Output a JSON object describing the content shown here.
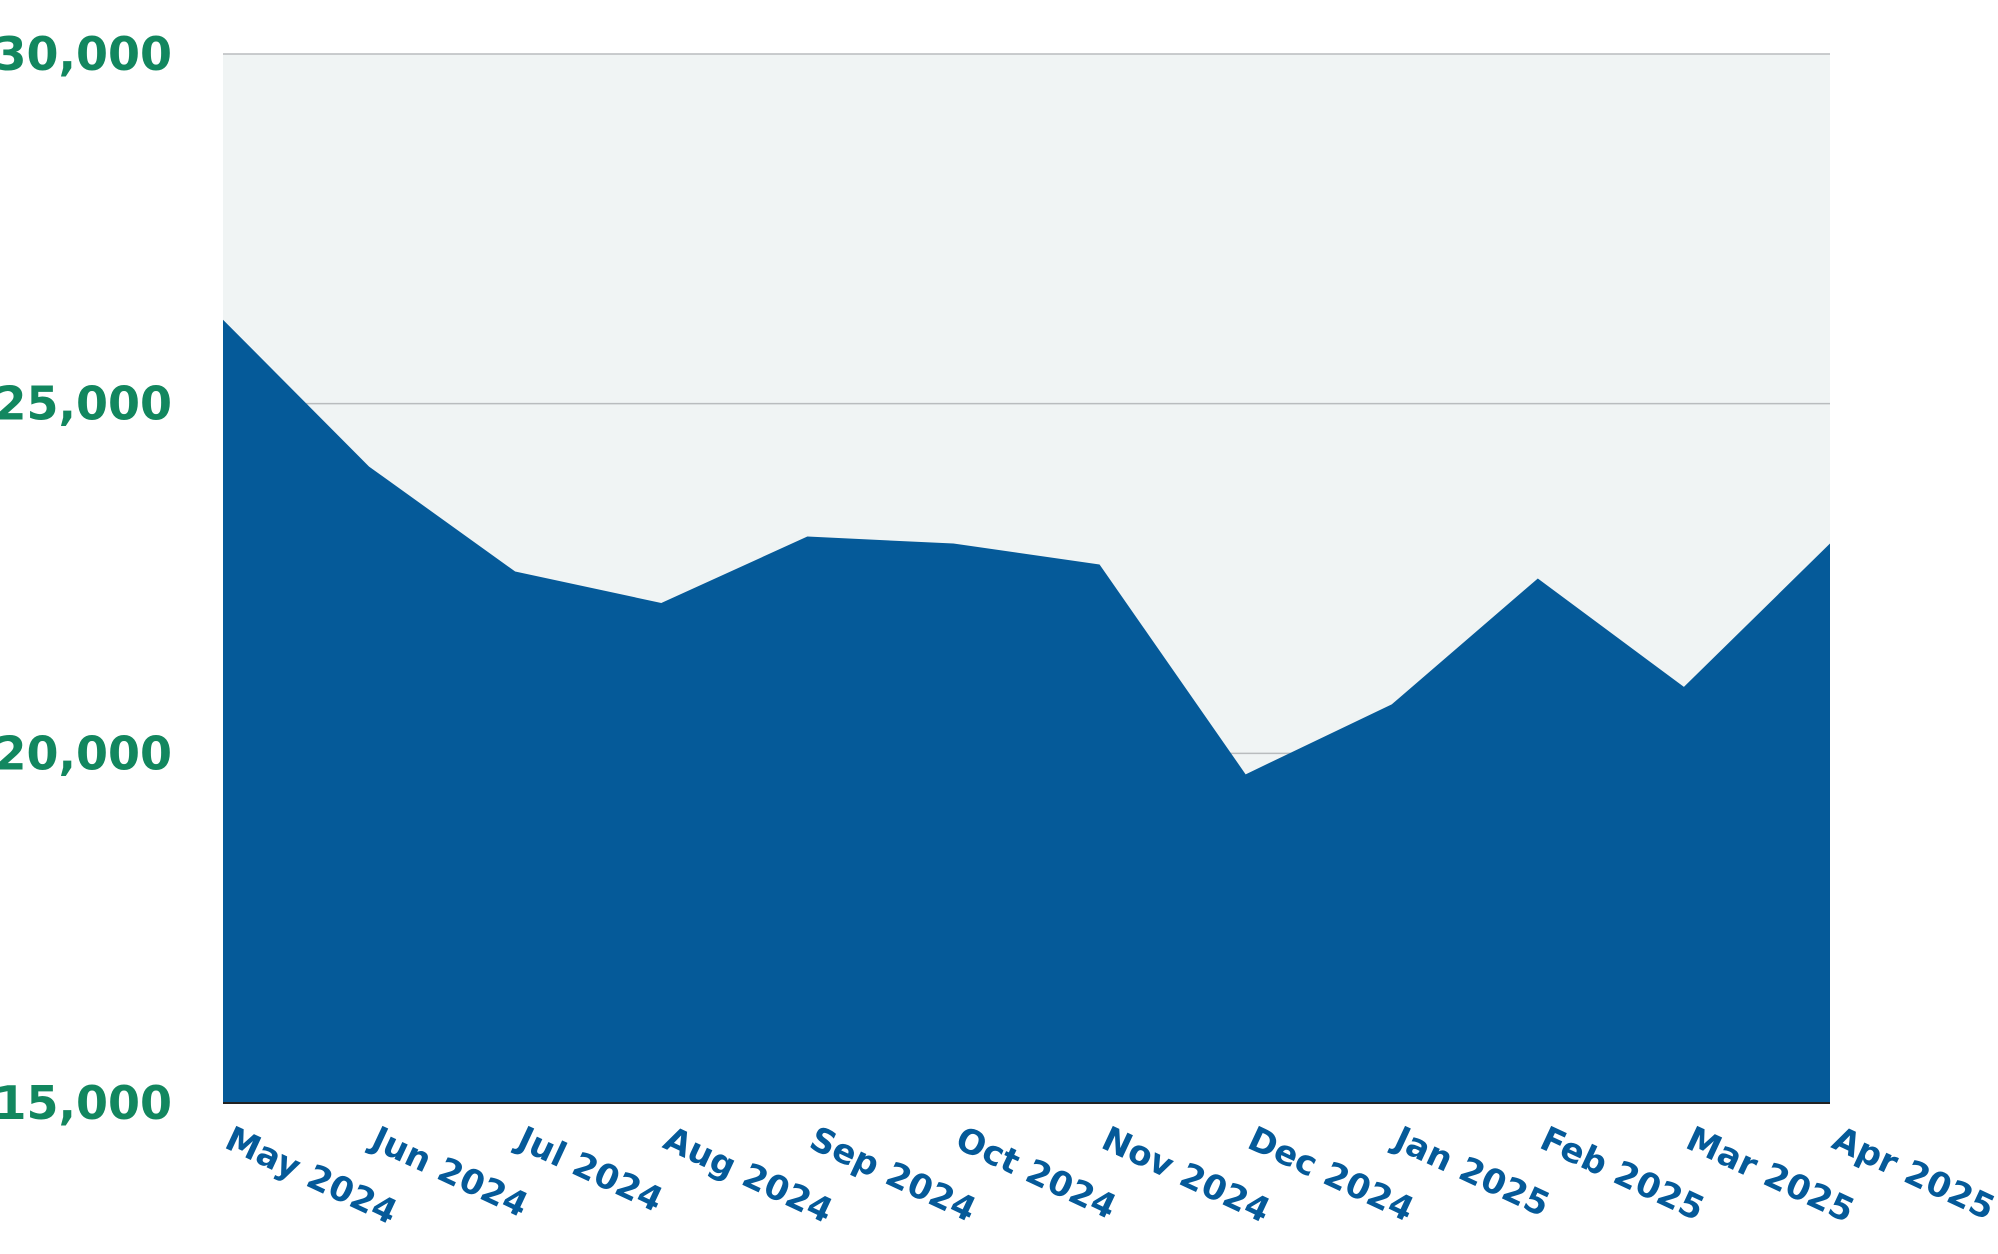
{
  "colors": {
    "area_fill": "#055a99",
    "plot_background": "#f0f4f4",
    "gridline": "#b9bcbe",
    "y_tick_text": "#12875f",
    "x_tick_text": "#055a99",
    "axis_line": "#222222"
  },
  "chart_data": {
    "type": "area",
    "title": "",
    "xlabel": "",
    "ylabel": "",
    "categories": [
      "May 2024",
      "Jun 2024",
      "Jul 2024",
      "Aug 2024",
      "Sep 2024",
      "Oct 2024",
      "Nov 2024",
      "Dec 2024",
      "Jan 2025",
      "Feb 2025",
      "Mar 2025",
      "Apr 2025"
    ],
    "series": [
      {
        "values": [
          26200,
          24100,
          22600,
          22150,
          23100,
          23000,
          22700,
          19700,
          20700,
          22500,
          20950,
          23000
        ]
      }
    ],
    "ylim": [
      15000,
      30000
    ],
    "yticks": [
      15000,
      20000,
      25000,
      30000
    ],
    "ytick_labels": [
      "15,000",
      "20,000",
      "25,000",
      "30,000"
    ],
    "grid": true,
    "legend": "none"
  }
}
